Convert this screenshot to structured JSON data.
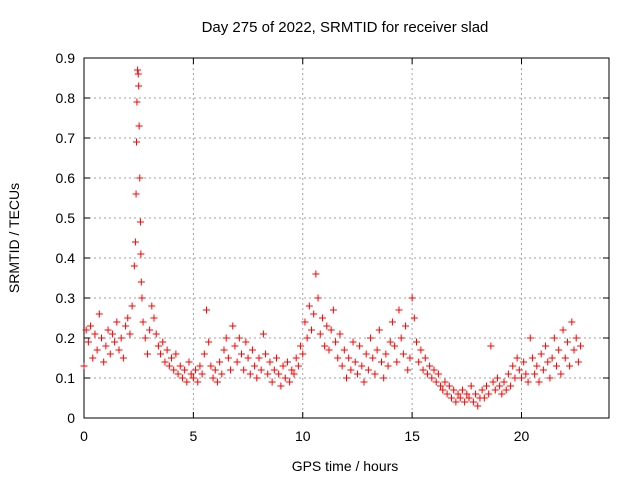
{
  "chart_data": {
    "type": "scatter",
    "title": "Day 275 of 2022, SRMTID for receiver slad",
    "xlabel": "GPS time / hours",
    "ylabel": "SRMTID / TECUs",
    "xlim": [
      0,
      24
    ],
    "ylim": [
      0,
      0.9
    ],
    "xticks": [
      0,
      5,
      10,
      15,
      20
    ],
    "xtick_labels": [
      "0",
      "5",
      "10",
      "15",
      "20"
    ],
    "yticks": [
      0,
      0.1,
      0.2,
      0.3,
      0.4,
      0.5,
      0.6,
      0.7,
      0.8,
      0.9
    ],
    "ytick_labels": [
      "0",
      "0.1",
      "0.2",
      "0.3",
      "0.4",
      "0.5",
      "0.6",
      "0.7",
      "0.8",
      "0.9"
    ],
    "grid": true,
    "marker": "+",
    "series_color": "#ff0000",
    "series": [
      {
        "name": "SRMTID",
        "x": [
          0.0,
          0.1,
          0.2,
          0.3,
          0.4,
          0.5,
          0.6,
          0.7,
          0.8,
          0.9,
          1.0,
          1.1,
          1.2,
          1.3,
          1.4,
          1.5,
          1.6,
          1.7,
          1.8,
          1.9,
          2.0,
          2.1,
          2.2,
          2.3,
          2.35,
          2.38,
          2.4,
          2.42,
          2.45,
          2.48,
          2.5,
          2.52,
          2.55,
          2.58,
          2.6,
          2.62,
          2.65,
          2.7,
          2.8,
          2.9,
          3.0,
          3.1,
          3.2,
          3.3,
          3.4,
          3.5,
          3.6,
          3.7,
          3.8,
          3.9,
          4.0,
          4.1,
          4.2,
          4.3,
          4.4,
          4.5,
          4.6,
          4.7,
          4.8,
          4.9,
          5.0,
          5.1,
          5.2,
          5.3,
          5.4,
          5.5,
          5.6,
          5.7,
          5.8,
          5.9,
          6.0,
          6.1,
          6.2,
          6.3,
          6.4,
          6.5,
          6.6,
          6.7,
          6.8,
          6.9,
          7.0,
          7.1,
          7.2,
          7.3,
          7.4,
          7.5,
          7.6,
          7.7,
          7.8,
          7.9,
          8.0,
          8.1,
          8.2,
          8.3,
          8.4,
          8.5,
          8.6,
          8.7,
          8.8,
          8.9,
          9.0,
          9.1,
          9.2,
          9.3,
          9.4,
          9.5,
          9.6,
          9.7,
          9.8,
          9.9,
          10.0,
          10.1,
          10.2,
          10.3,
          10.4,
          10.5,
          10.6,
          10.7,
          10.8,
          10.9,
          11.0,
          11.1,
          11.2,
          11.3,
          11.4,
          11.5,
          11.6,
          11.7,
          11.8,
          11.9,
          12.0,
          12.1,
          12.2,
          12.3,
          12.4,
          12.5,
          12.6,
          12.7,
          12.8,
          12.9,
          13.0,
          13.1,
          13.2,
          13.3,
          13.4,
          13.5,
          13.6,
          13.7,
          13.8,
          13.9,
          14.0,
          14.1,
          14.2,
          14.3,
          14.4,
          14.5,
          14.6,
          14.7,
          14.8,
          14.9,
          15.0,
          15.1,
          15.2,
          15.3,
          15.4,
          15.5,
          15.6,
          15.7,
          15.8,
          15.9,
          16.0,
          16.1,
          16.2,
          16.3,
          16.4,
          16.5,
          16.6,
          16.7,
          16.8,
          16.9,
          17.0,
          17.1,
          17.2,
          17.3,
          17.4,
          17.5,
          17.6,
          17.7,
          17.8,
          17.9,
          18.0,
          18.1,
          18.2,
          18.3,
          18.4,
          18.5,
          18.6,
          18.7,
          18.8,
          18.9,
          19.0,
          19.1,
          19.2,
          19.3,
          19.4,
          19.5,
          19.6,
          19.7,
          19.8,
          19.9,
          20.0,
          20.1,
          20.2,
          20.3,
          20.4,
          20.5,
          20.6,
          20.7,
          20.8,
          20.9,
          21.0,
          21.1,
          21.2,
          21.3,
          21.4,
          21.5,
          21.6,
          21.7,
          21.8,
          21.9,
          22.0,
          22.1,
          22.2,
          22.3,
          22.4,
          22.5,
          22.6,
          22.7
        ],
        "y": [
          0.13,
          0.22,
          0.19,
          0.23,
          0.15,
          0.21,
          0.17,
          0.26,
          0.2,
          0.14,
          0.18,
          0.22,
          0.16,
          0.21,
          0.19,
          0.24,
          0.17,
          0.2,
          0.15,
          0.23,
          0.25,
          0.21,
          0.28,
          0.38,
          0.44,
          0.56,
          0.69,
          0.79,
          0.87,
          0.86,
          0.83,
          0.73,
          0.6,
          0.49,
          0.41,
          0.34,
          0.3,
          0.24,
          0.2,
          0.16,
          0.22,
          0.28,
          0.25,
          0.21,
          0.18,
          0.16,
          0.19,
          0.14,
          0.17,
          0.13,
          0.15,
          0.12,
          0.16,
          0.11,
          0.13,
          0.1,
          0.12,
          0.09,
          0.14,
          0.11,
          0.1,
          0.12,
          0.09,
          0.13,
          0.11,
          0.16,
          0.27,
          0.19,
          0.13,
          0.1,
          0.12,
          0.09,
          0.14,
          0.11,
          0.17,
          0.2,
          0.15,
          0.12,
          0.23,
          0.18,
          0.14,
          0.2,
          0.16,
          0.12,
          0.19,
          0.15,
          0.11,
          0.17,
          0.13,
          0.1,
          0.15,
          0.12,
          0.21,
          0.16,
          0.11,
          0.14,
          0.09,
          0.12,
          0.15,
          0.11,
          0.08,
          0.13,
          0.1,
          0.14,
          0.09,
          0.12,
          0.11,
          0.15,
          0.13,
          0.18,
          0.16,
          0.24,
          0.2,
          0.28,
          0.22,
          0.26,
          0.36,
          0.3,
          0.21,
          0.25,
          0.18,
          0.23,
          0.17,
          0.22,
          0.27,
          0.19,
          0.15,
          0.21,
          0.13,
          0.17,
          0.1,
          0.15,
          0.12,
          0.19,
          0.14,
          0.11,
          0.18,
          0.13,
          0.09,
          0.16,
          0.12,
          0.2,
          0.15,
          0.11,
          0.17,
          0.22,
          0.14,
          0.1,
          0.16,
          0.13,
          0.19,
          0.24,
          0.18,
          0.14,
          0.27,
          0.2,
          0.16,
          0.23,
          0.12,
          0.15,
          0.3,
          0.25,
          0.19,
          0.14,
          0.17,
          0.12,
          0.15,
          0.11,
          0.13,
          0.1,
          0.12,
          0.09,
          0.11,
          0.08,
          0.07,
          0.09,
          0.06,
          0.08,
          0.05,
          0.07,
          0.04,
          0.06,
          0.05,
          0.07,
          0.04,
          0.06,
          0.05,
          0.08,
          0.04,
          0.06,
          0.03,
          0.05,
          0.07,
          0.05,
          0.08,
          0.06,
          0.18,
          0.09,
          0.07,
          0.1,
          0.08,
          0.06,
          0.09,
          0.07,
          0.11,
          0.08,
          0.13,
          0.1,
          0.15,
          0.12,
          0.1,
          0.14,
          0.11,
          0.09,
          0.2,
          0.15,
          0.11,
          0.13,
          0.09,
          0.16,
          0.12,
          0.18,
          0.14,
          0.1,
          0.15,
          0.2,
          0.13,
          0.17,
          0.11,
          0.22,
          0.15,
          0.19,
          0.13,
          0.24,
          0.17,
          0.2,
          0.14,
          0.18
        ]
      }
    ]
  }
}
